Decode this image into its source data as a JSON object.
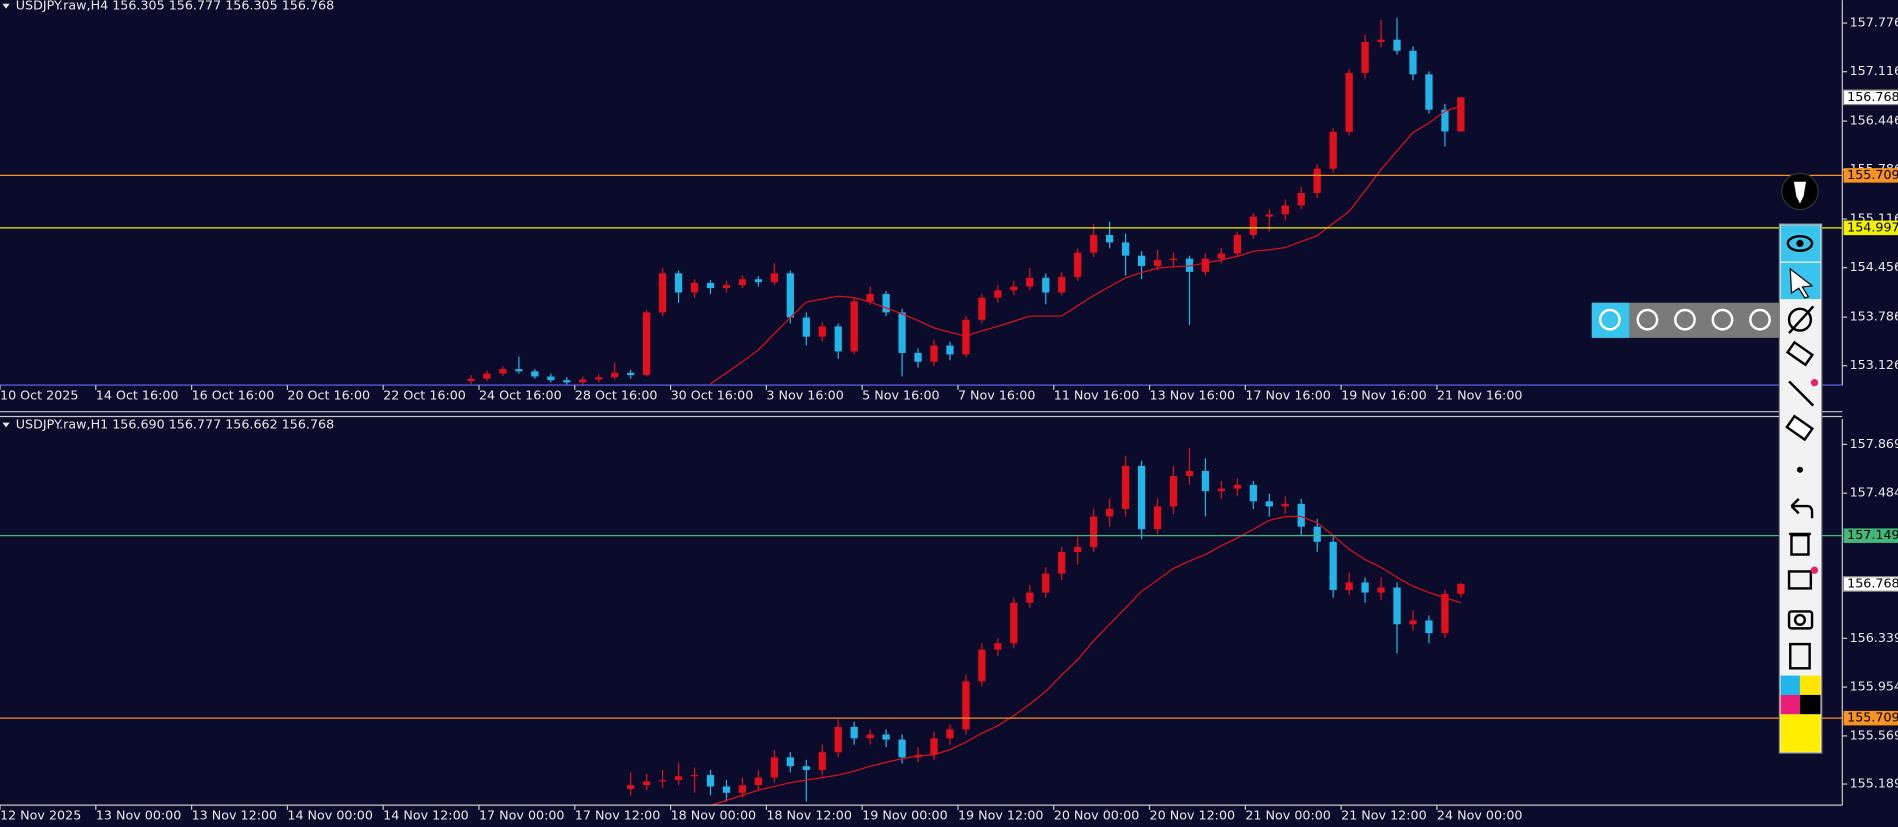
{
  "chart_data": [
    {
      "type": "candlestick",
      "title": "USDJPY.raw,H4  156.305 156.777 156.305 156.768",
      "categories": [
        "10 Oct 2025",
        null,
        null,
        null,
        null,
        null,
        "14 Oct 16:00",
        null,
        null,
        null,
        null,
        null,
        "16 Oct 16:00",
        null,
        null,
        null,
        null,
        null,
        "20 Oct 16:00",
        null,
        null,
        null,
        null,
        null,
        "22 Oct 16:00",
        null,
        null,
        null,
        null,
        null,
        "24 Oct 16:00",
        null,
        null,
        null,
        null,
        null,
        "28 Oct 16:00",
        null,
        null,
        null,
        null,
        null,
        "30 Oct 16:00",
        null,
        null,
        null,
        null,
        null,
        "3 Nov 16:00",
        null,
        null,
        null,
        null,
        null,
        "5 Nov 16:00",
        null,
        null,
        null,
        null,
        null,
        "7 Nov 16:00",
        null,
        null,
        null,
        null,
        null,
        "11 Nov 16:00",
        null,
        null,
        null,
        null,
        null,
        "13 Nov 16:00",
        null,
        null,
        null,
        null,
        null,
        "17 Nov 16:00",
        null,
        null,
        null,
        null,
        null,
        "19 Nov 16:00",
        null,
        null,
        null,
        null,
        null,
        "21 Nov 16:00",
        null
      ],
      "ohlc": [
        null,
        null,
        null,
        null,
        null,
        null,
        null,
        null,
        null,
        null,
        null,
        null,
        null,
        null,
        null,
        null,
        null,
        null,
        null,
        null,
        null,
        null,
        null,
        null,
        null,
        null,
        null,
        null,
        null,
        [
          152.92,
          153.0,
          152.88,
          152.95
        ],
        [
          152.95,
          153.06,
          152.92,
          153.02
        ],
        [
          153.02,
          153.12,
          152.99,
          153.08
        ],
        [
          153.08,
          153.25,
          153.02,
          153.05
        ],
        [
          153.05,
          153.08,
          152.95,
          152.98
        ],
        [
          152.98,
          153.02,
          152.9,
          152.93
        ],
        [
          152.93,
          152.97,
          152.86,
          152.9
        ],
        [
          152.9,
          152.98,
          152.87,
          152.94
        ],
        [
          152.94,
          153.01,
          152.9,
          152.97
        ],
        [
          152.97,
          153.17,
          152.94,
          153.03
        ],
        [
          153.03,
          153.07,
          152.95,
          153.0
        ],
        [
          153.0,
          153.88,
          152.98,
          153.85
        ],
        [
          153.85,
          154.45,
          153.8,
          154.38
        ],
        [
          154.38,
          154.42,
          153.98,
          154.12
        ],
        [
          154.12,
          154.3,
          154.05,
          154.25
        ],
        [
          154.25,
          154.29,
          154.1,
          154.18
        ],
        [
          154.18,
          154.28,
          154.12,
          154.22
        ],
        [
          154.22,
          154.35,
          154.18,
          154.3
        ],
        [
          154.3,
          154.34,
          154.2,
          154.26
        ],
        [
          154.26,
          154.52,
          154.22,
          154.38
        ],
        [
          154.38,
          154.42,
          153.7,
          153.78
        ],
        [
          153.78,
          153.85,
          153.4,
          153.52
        ],
        [
          153.52,
          153.72,
          153.45,
          153.66
        ],
        [
          153.66,
          153.7,
          153.22,
          153.32
        ],
        [
          153.32,
          154.05,
          153.28,
          154.0
        ],
        [
          154.0,
          154.2,
          153.95,
          154.1
        ],
        [
          154.1,
          154.14,
          153.8,
          153.85
        ],
        [
          153.85,
          153.9,
          152.98,
          153.3
        ],
        [
          153.3,
          153.36,
          153.1,
          153.18
        ],
        [
          153.18,
          153.48,
          153.12,
          153.4
        ],
        [
          153.4,
          153.45,
          153.2,
          153.28
        ],
        [
          153.28,
          153.8,
          153.24,
          153.75
        ],
        [
          153.75,
          154.1,
          153.7,
          154.05
        ],
        [
          154.05,
          154.22,
          153.98,
          154.15
        ],
        [
          154.15,
          154.28,
          154.08,
          154.2
        ],
        [
          154.2,
          154.45,
          154.15,
          154.32
        ],
        [
          154.32,
          154.38,
          153.96,
          154.12
        ],
        [
          154.12,
          154.4,
          154.08,
          154.33
        ],
        [
          154.33,
          154.72,
          154.28,
          154.66
        ],
        [
          154.66,
          155.05,
          154.6,
          154.9
        ],
        [
          154.9,
          155.08,
          154.72,
          154.8
        ],
        [
          154.8,
          154.92,
          154.35,
          154.62
        ],
        [
          154.62,
          154.68,
          154.3,
          154.48
        ],
        [
          154.48,
          154.7,
          154.42,
          154.56
        ],
        [
          154.56,
          154.66,
          154.48,
          154.58
        ],
        [
          154.58,
          154.62,
          153.68,
          154.4
        ],
        [
          154.4,
          154.65,
          154.35,
          154.58
        ],
        [
          154.58,
          154.72,
          154.52,
          154.65
        ],
        [
          154.65,
          154.95,
          154.6,
          154.9
        ],
        [
          154.9,
          155.2,
          154.85,
          155.15
        ],
        [
          155.15,
          155.25,
          154.95,
          155.18
        ],
        [
          155.18,
          155.38,
          155.1,
          155.3
        ],
        [
          155.3,
          155.55,
          155.25,
          155.47
        ],
        [
          155.47,
          155.86,
          155.4,
          155.8
        ],
        [
          155.8,
          156.35,
          155.75,
          156.3
        ],
        [
          156.3,
          157.15,
          156.25,
          157.1
        ],
        [
          157.1,
          157.62,
          157.02,
          157.52
        ],
        [
          157.52,
          157.82,
          157.45,
          157.55
        ],
        [
          157.55,
          157.85,
          157.35,
          157.4
        ],
        [
          157.4,
          157.46,
          157.0,
          157.08
        ],
        [
          157.08,
          157.12,
          156.55,
          156.6
        ],
        [
          156.6,
          156.68,
          156.1,
          156.305
        ],
        [
          156.305,
          156.777,
          156.305,
          156.768
        ]
      ],
      "up_color": "#e3101b",
      "down_color": "#22b5ea",
      "ma": {
        "color": "#e3101b",
        "values": [
          null,
          null,
          null,
          null,
          null,
          null,
          null,
          null,
          null,
          null,
          null,
          null,
          null,
          null,
          null,
          null,
          null,
          null,
          null,
          null,
          null,
          null,
          null,
          null,
          null,
          null,
          null,
          null,
          null,
          null,
          null,
          null,
          null,
          null,
          null,
          null,
          null,
          null,
          null,
          null,
          null,
          null,
          null,
          null,
          152.88,
          153.03,
          153.18,
          153.34,
          153.56,
          153.78,
          153.99,
          154.03,
          154.07,
          154.05,
          153.99,
          153.91,
          153.83,
          153.74,
          153.64,
          153.58,
          153.53,
          153.6,
          153.66,
          153.73,
          153.8,
          153.8,
          153.8,
          153.94,
          154.08,
          154.2,
          154.32,
          154.39,
          154.45,
          154.47,
          154.48,
          154.52,
          154.56,
          154.61,
          154.68,
          154.7,
          154.73,
          154.81,
          154.89,
          155.06,
          155.22,
          155.5,
          155.79,
          156.04,
          156.29,
          156.42,
          156.58,
          156.65
        ]
      },
      "ylim": [
        152.864,
        158.087
      ],
      "yticks": [
        153.126,
        153.786,
        154.456,
        155.116,
        155.786,
        156.446,
        157.116,
        157.776
      ],
      "levels": [
        {
          "value": 155.709,
          "color": "#f7931e"
        },
        {
          "value": 154.997,
          "color": "#f2f200"
        }
      ],
      "last_price": 156.768
    },
    {
      "type": "candlestick",
      "title": "USDJPY.raw,H1  156.690 156.777 156.662 156.768",
      "categories": [
        "12 Nov 2025",
        null,
        null,
        null,
        null,
        null,
        "13 Nov 00:00",
        null,
        null,
        null,
        null,
        null,
        "13 Nov 12:00",
        null,
        null,
        null,
        null,
        null,
        "14 Nov 00:00",
        null,
        null,
        null,
        null,
        null,
        "14 Nov 12:00",
        null,
        null,
        null,
        null,
        null,
        "17 Nov 00:00",
        null,
        null,
        null,
        null,
        null,
        "17 Nov 12:00",
        null,
        null,
        null,
        null,
        null,
        "18 Nov 00:00",
        null,
        null,
        null,
        null,
        null,
        "18 Nov 12:00",
        null,
        null,
        null,
        null,
        null,
        "19 Nov 00:00",
        null,
        null,
        null,
        null,
        null,
        "19 Nov 12:00",
        null,
        null,
        null,
        null,
        null,
        "20 Nov 00:00",
        null,
        null,
        null,
        null,
        null,
        "20 Nov 12:00",
        null,
        null,
        null,
        null,
        null,
        "21 Nov 00:00",
        null,
        null,
        null,
        null,
        null,
        "21 Nov 12:00",
        null,
        null,
        null,
        null,
        null,
        "24 Nov 00:00",
        null
      ],
      "ohlc": [
        null,
        null,
        null,
        null,
        null,
        null,
        null,
        null,
        null,
        null,
        null,
        null,
        null,
        null,
        null,
        null,
        null,
        null,
        null,
        null,
        null,
        null,
        null,
        null,
        null,
        null,
        null,
        null,
        null,
        null,
        null,
        null,
        null,
        null,
        null,
        null,
        null,
        null,
        null,
        [
          155.15,
          155.28,
          155.1,
          155.18
        ],
        [
          155.18,
          155.27,
          155.14,
          155.21
        ],
        [
          155.21,
          155.3,
          155.16,
          155.22
        ],
        [
          155.22,
          155.36,
          155.18,
          155.25
        ],
        [
          155.25,
          155.32,
          155.12,
          155.26
        ],
        [
          155.26,
          155.3,
          155.1,
          155.17
        ],
        [
          155.17,
          155.22,
          155.05,
          155.12
        ],
        [
          155.12,
          155.24,
          155.08,
          155.18
        ],
        [
          155.18,
          155.3,
          155.14,
          155.24
        ],
        [
          155.24,
          155.46,
          155.2,
          155.4
        ],
        [
          155.4,
          155.44,
          155.28,
          155.33
        ],
        [
          155.33,
          155.38,
          155.05,
          155.3
        ],
        [
          155.3,
          155.5,
          155.26,
          155.44
        ],
        [
          155.44,
          155.7,
          155.4,
          155.64
        ],
        [
          155.64,
          155.68,
          155.5,
          155.55
        ],
        [
          155.55,
          155.62,
          155.5,
          155.58
        ],
        [
          155.58,
          155.62,
          155.48,
          155.54
        ],
        [
          155.54,
          155.58,
          155.35,
          155.4
        ],
        [
          155.4,
          155.48,
          155.36,
          155.42
        ],
        [
          155.42,
          155.6,
          155.38,
          155.55
        ],
        [
          155.55,
          155.66,
          155.5,
          155.62
        ],
        [
          155.62,
          156.05,
          155.58,
          156.0
        ],
        [
          156.0,
          156.3,
          155.96,
          156.25
        ],
        [
          156.25,
          156.34,
          156.2,
          156.3
        ],
        [
          156.3,
          156.66,
          156.26,
          156.62
        ],
        [
          156.62,
          156.76,
          156.58,
          156.7
        ],
        [
          156.7,
          156.9,
          156.66,
          156.85
        ],
        [
          156.85,
          157.06,
          156.8,
          157.02
        ],
        [
          157.02,
          157.14,
          156.92,
          157.06
        ],
        [
          157.06,
          157.36,
          157.02,
          157.3
        ],
        [
          157.3,
          157.44,
          157.22,
          157.36
        ],
        [
          157.36,
          157.78,
          157.3,
          157.7
        ],
        [
          157.7,
          157.74,
          157.12,
          157.2
        ],
        [
          157.2,
          157.44,
          157.16,
          157.38
        ],
        [
          157.38,
          157.7,
          157.32,
          157.62
        ],
        [
          157.62,
          157.84,
          157.55,
          157.66
        ],
        [
          157.66,
          157.76,
          157.3,
          157.5
        ],
        [
          157.5,
          157.58,
          157.44,
          157.52
        ],
        [
          157.52,
          157.6,
          157.46,
          157.55
        ],
        [
          157.55,
          157.58,
          157.36,
          157.42
        ],
        [
          157.42,
          157.48,
          157.3,
          157.38
        ],
        [
          157.38,
          157.46,
          157.32,
          157.4
        ],
        [
          157.4,
          157.44,
          157.15,
          157.22
        ],
        [
          157.22,
          157.28,
          157.02,
          157.1
        ],
        [
          157.1,
          157.14,
          156.66,
          156.72
        ],
        [
          156.72,
          156.86,
          156.68,
          156.78
        ],
        [
          156.78,
          156.82,
          156.62,
          156.7
        ],
        [
          156.7,
          156.82,
          156.64,
          156.74
        ],
        [
          156.74,
          156.78,
          156.22,
          156.45
        ],
        [
          156.45,
          156.56,
          156.4,
          156.48
        ],
        [
          156.48,
          156.52,
          156.3,
          156.38
        ],
        [
          156.38,
          156.72,
          156.34,
          156.69
        ],
        [
          156.69,
          156.777,
          156.662,
          156.768
        ]
      ],
      "up_color": "#e3101b",
      "down_color": "#22b5ea",
      "ma": {
        "color": "#e3101b",
        "values": [
          null,
          null,
          null,
          null,
          null,
          null,
          null,
          null,
          null,
          null,
          null,
          null,
          null,
          null,
          null,
          null,
          null,
          null,
          null,
          null,
          null,
          null,
          null,
          null,
          null,
          null,
          null,
          null,
          null,
          null,
          null,
          null,
          null,
          null,
          null,
          null,
          null,
          null,
          null,
          null,
          null,
          null,
          null,
          null,
          155.02,
          155.06,
          155.1,
          155.14,
          155.17,
          155.2,
          155.22,
          155.24,
          155.26,
          155.29,
          155.33,
          155.36,
          155.39,
          155.41,
          155.42,
          155.46,
          155.52,
          155.59,
          155.65,
          155.73,
          155.82,
          155.92,
          156.05,
          156.17,
          156.32,
          156.45,
          156.58,
          156.71,
          156.8,
          156.89,
          156.95,
          157.0,
          157.07,
          157.13,
          157.2,
          157.27,
          157.3,
          157.3,
          157.25,
          157.15,
          157.04,
          156.96,
          156.9,
          156.82,
          156.75,
          156.7,
          156.66,
          156.62
        ]
      },
      "ylim": [
        155.023,
        158.07
      ],
      "yticks": [
        155.189,
        155.569,
        155.954,
        156.339,
        157.484,
        157.869
      ],
      "levels": [
        {
          "value": 157.149,
          "color": "#3fb87a"
        },
        {
          "value": 155.709,
          "color": "#f7931e"
        }
      ],
      "last_price": 156.768
    }
  ]
}
